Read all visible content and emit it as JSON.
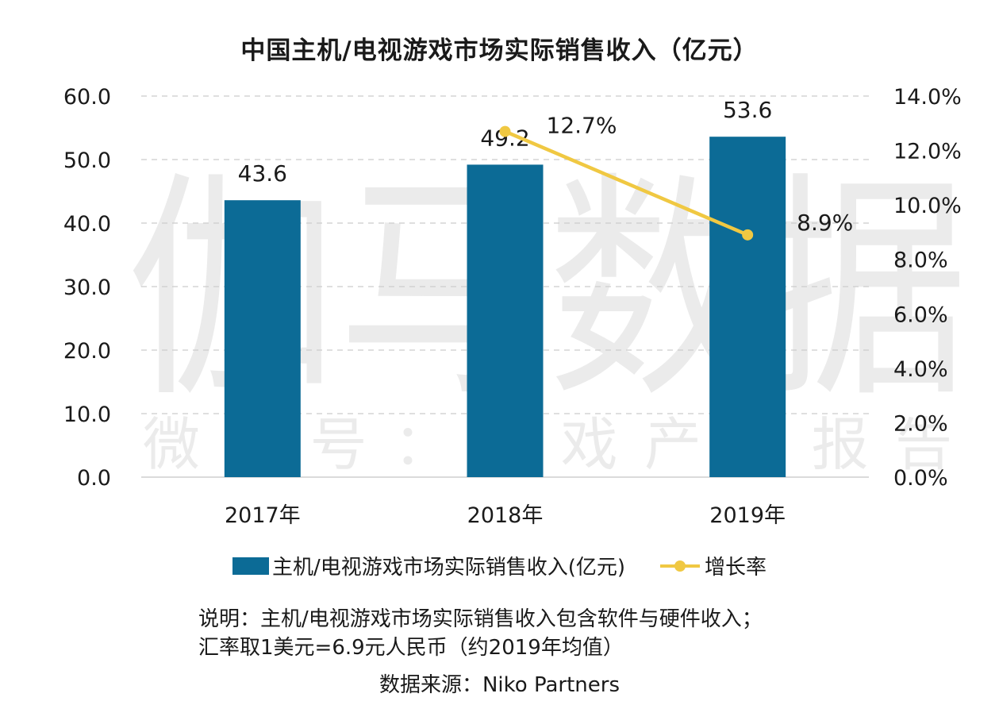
{
  "chart_data": {
    "type": "bar",
    "title": "中国主机/电视游戏市场实际销售收入（亿元）",
    "categories": [
      "2017年",
      "2018年",
      "2019年"
    ],
    "series": [
      {
        "name": "主机/电视游戏市场实际销售收入(亿元)",
        "type": "bar",
        "axis": "left",
        "values": [
          43.6,
          49.2,
          53.6
        ],
        "labels": [
          "43.6",
          "49.2",
          "53.6"
        ],
        "color": "#0c6b96"
      },
      {
        "name": "增长率",
        "type": "line",
        "axis": "right",
        "values": [
          null,
          12.7,
          8.9
        ],
        "labels": [
          "",
          "12.7%",
          "8.9%"
        ],
        "color": "#f0c842"
      }
    ],
    "y_left": {
      "min": 0,
      "max": 60,
      "ticks": [
        "0.0",
        "10.0",
        "20.0",
        "30.0",
        "40.0",
        "50.0",
        "60.0"
      ]
    },
    "y_right": {
      "min": 0,
      "max": 14,
      "ticks": [
        "0.0%",
        "2.0%",
        "4.0%",
        "6.0%",
        "8.0%",
        "10.0%",
        "12.0%",
        "14.0%"
      ]
    },
    "grid": true,
    "legend": "bottom"
  },
  "watermark": {
    "main": "伽马数据",
    "sub": "微信号：游戏产业报告"
  },
  "note": {
    "line1": "说明：主机/电视游戏市场实际销售收入包含软件与硬件收入；",
    "line2": "汇率取1美元=6.9元人民币（约2019年均值）"
  },
  "source": "数据来源：Niko Partners"
}
